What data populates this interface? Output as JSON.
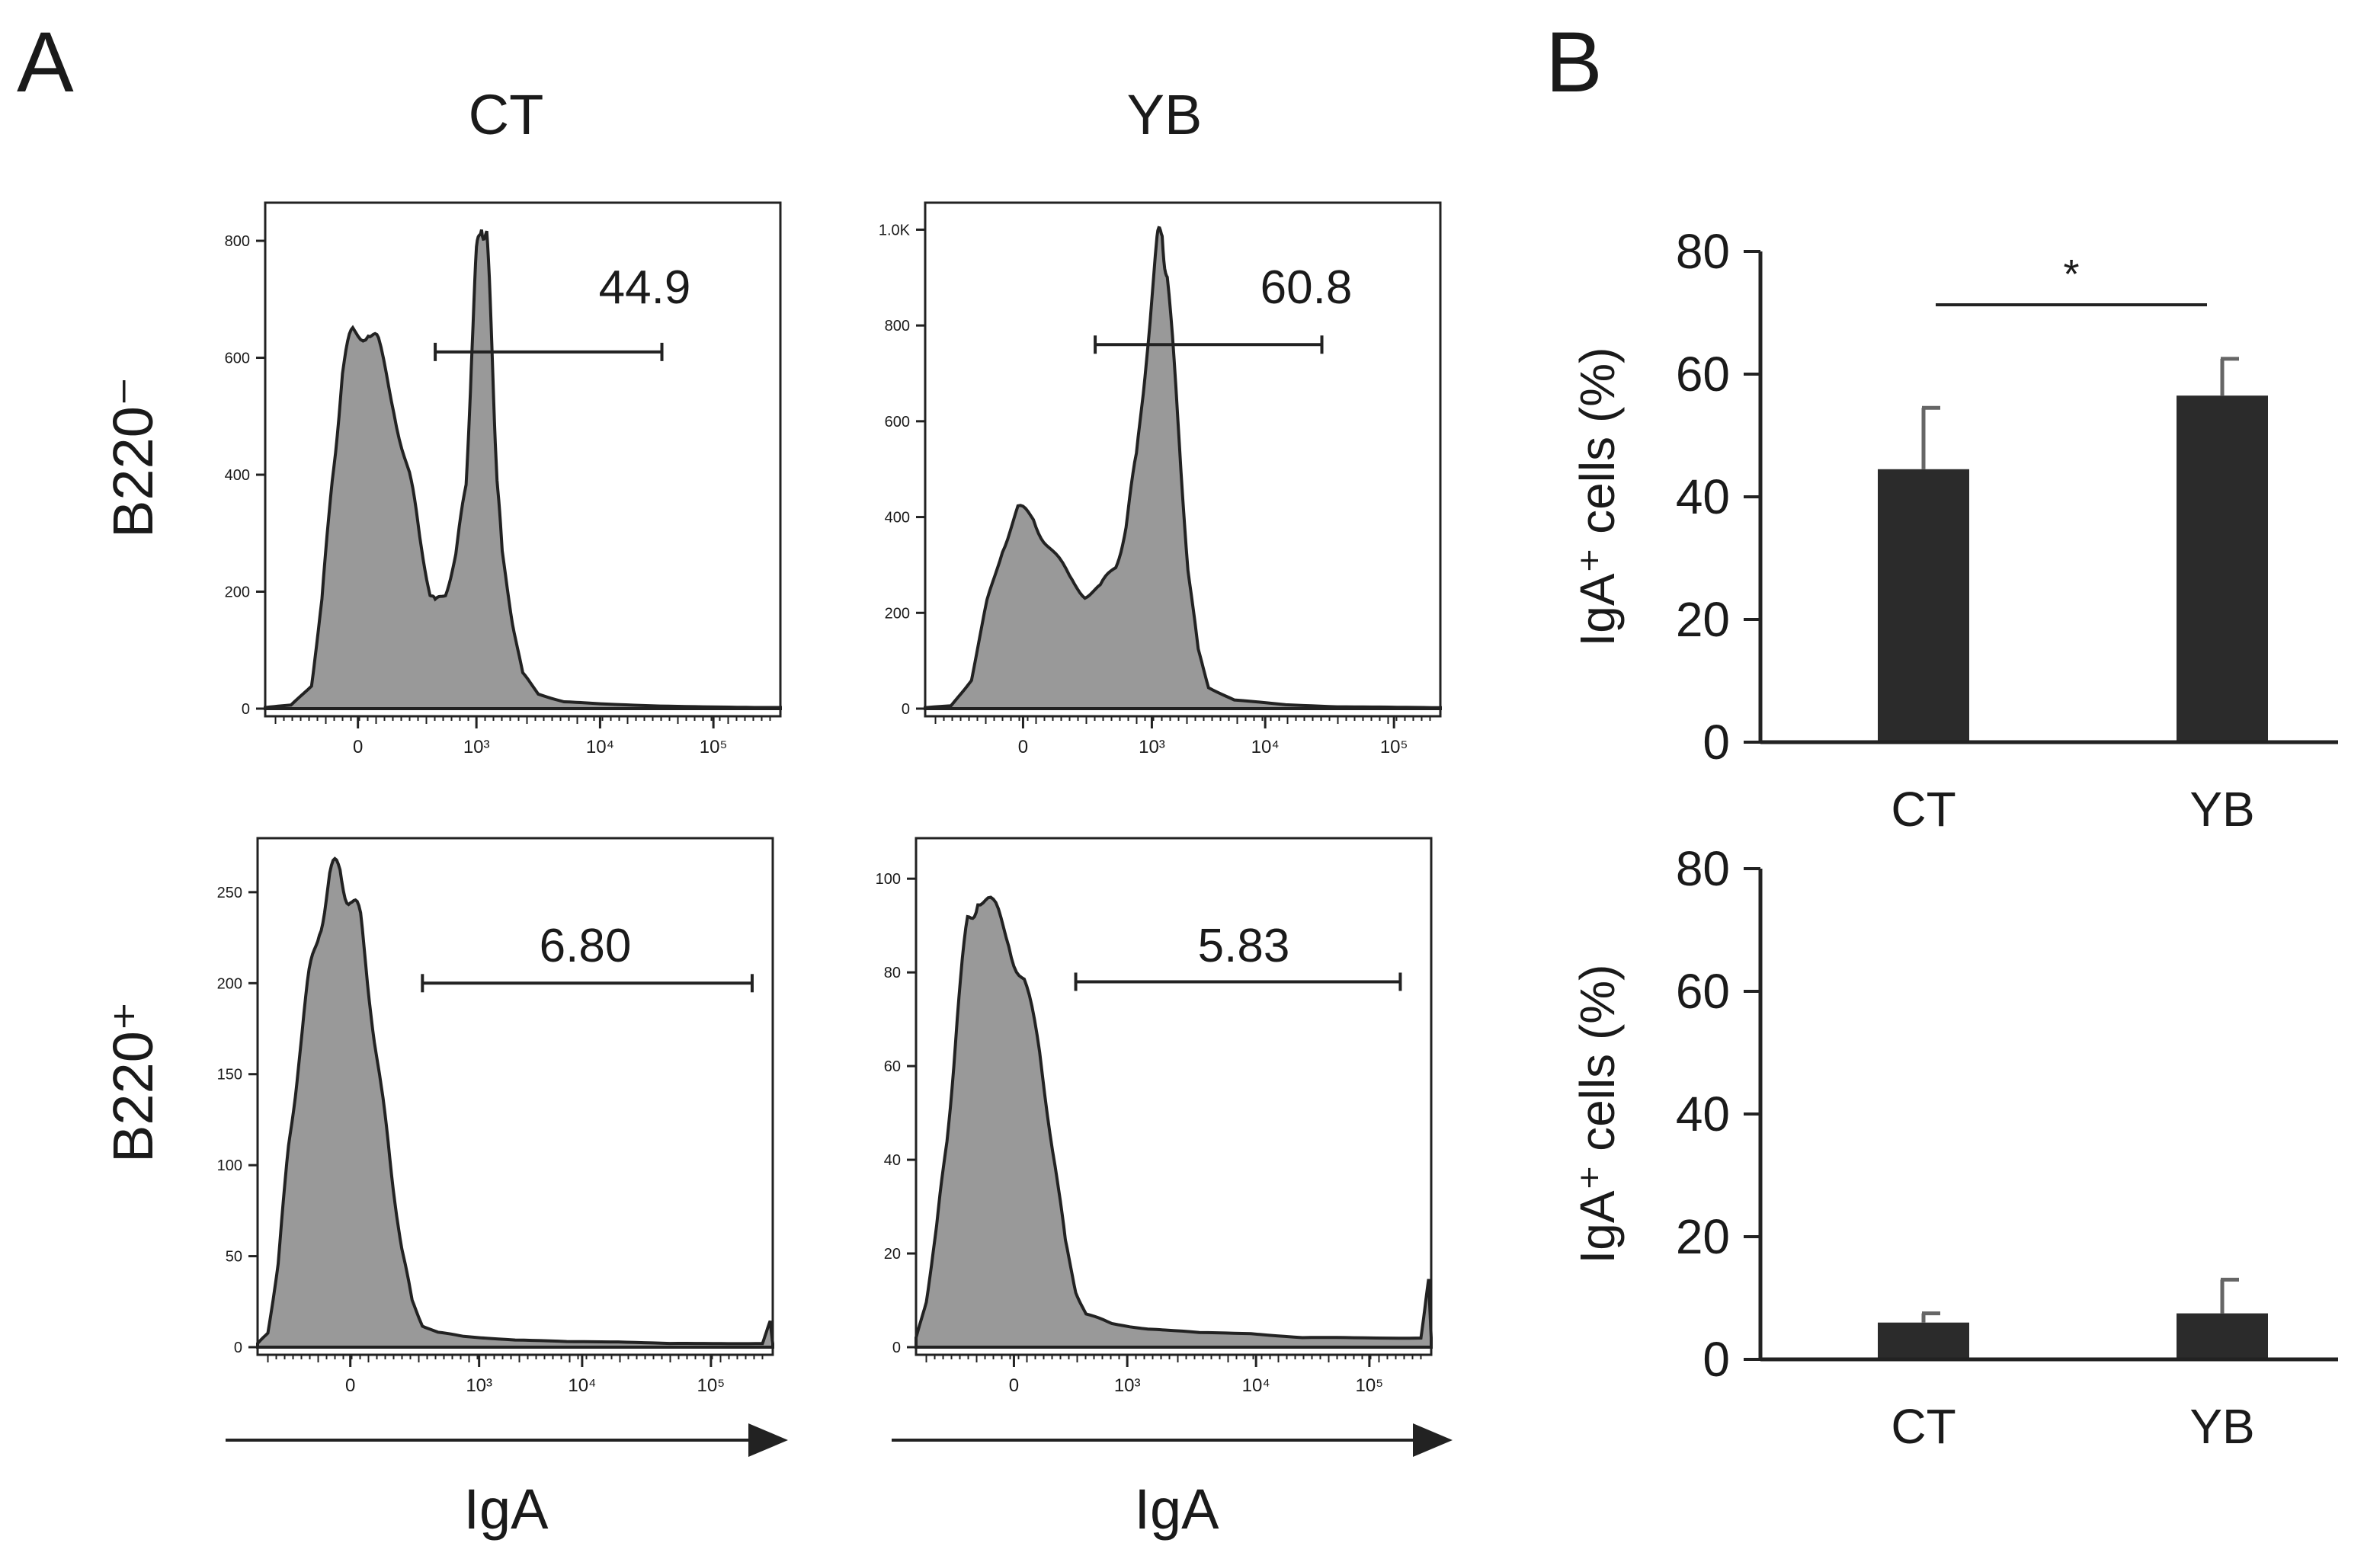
{
  "panels": {
    "a": "A",
    "b": "B"
  },
  "colors": {
    "fill": "#999999",
    "line": "#222222",
    "bar": "#2b2b2b",
    "axis": "#222222"
  },
  "chart_data": [
    {
      "type": "histogram",
      "name": "B220- CT",
      "row_label": "B220⁻",
      "column_label": "CT",
      "gate_value": "44.9",
      "xlabel": "",
      "y_ticks": [
        "0",
        "200",
        "400",
        "600",
        "800"
      ],
      "ylim": [
        0,
        860
      ],
      "x_tick_labels": [
        "0",
        "10³",
        "10⁴",
        "10⁵"
      ],
      "x_tick_positions": [
        0.18,
        0.41,
        0.65,
        0.87
      ],
      "gate": {
        "start": 0.33,
        "end": 0.77,
        "level": 610
      },
      "profile": [
        [
          0.0,
          2
        ],
        [
          0.05,
          6
        ],
        [
          0.09,
          40
        ],
        [
          0.11,
          180
        ],
        [
          0.13,
          400
        ],
        [
          0.15,
          570
        ],
        [
          0.17,
          640
        ],
        [
          0.2,
          660
        ],
        [
          0.22,
          610
        ],
        [
          0.25,
          520
        ],
        [
          0.28,
          400
        ],
        [
          0.3,
          290
        ],
        [
          0.32,
          200
        ],
        [
          0.33,
          180
        ],
        [
          0.35,
          200
        ],
        [
          0.37,
          260
        ],
        [
          0.39,
          380
        ],
        [
          0.4,
          600
        ],
        [
          0.41,
          760
        ],
        [
          0.42,
          850
        ],
        [
          0.43,
          800
        ],
        [
          0.44,
          620
        ],
        [
          0.45,
          400
        ],
        [
          0.46,
          260
        ],
        [
          0.48,
          150
        ],
        [
          0.5,
          60
        ],
        [
          0.53,
          25
        ],
        [
          0.58,
          12
        ],
        [
          0.65,
          8
        ],
        [
          0.75,
          5
        ],
        [
          0.85,
          3
        ],
        [
          0.95,
          2
        ],
        [
          1.0,
          2
        ]
      ]
    },
    {
      "type": "histogram",
      "name": "B220- YB",
      "column_label": "YB",
      "gate_value": "60.8",
      "xlabel": "",
      "y_ticks": [
        "0",
        "200",
        "400",
        "600",
        "800",
        "1.0K"
      ],
      "ylim": [
        0,
        1050
      ],
      "x_tick_labels": [
        "0",
        "10³",
        "10⁴",
        "10⁵"
      ],
      "x_tick_positions": [
        0.19,
        0.44,
        0.66,
        0.91
      ],
      "gate": {
        "start": 0.33,
        "end": 0.77,
        "level": 760
      },
      "profile": [
        [
          0.0,
          2
        ],
        [
          0.05,
          6
        ],
        [
          0.09,
          60
        ],
        [
          0.12,
          220
        ],
        [
          0.15,
          340
        ],
        [
          0.18,
          410
        ],
        [
          0.21,
          400
        ],
        [
          0.24,
          340
        ],
        [
          0.28,
          270
        ],
        [
          0.31,
          240
        ],
        [
          0.34,
          250
        ],
        [
          0.37,
          300
        ],
        [
          0.39,
          380
        ],
        [
          0.41,
          520
        ],
        [
          0.43,
          760
        ],
        [
          0.45,
          950
        ],
        [
          0.46,
          1010
        ],
        [
          0.47,
          900
        ],
        [
          0.49,
          600
        ],
        [
          0.51,
          300
        ],
        [
          0.53,
          120
        ],
        [
          0.55,
          45
        ],
        [
          0.6,
          18
        ],
        [
          0.7,
          8
        ],
        [
          0.8,
          4
        ],
        [
          0.9,
          3
        ],
        [
          1.0,
          2
        ]
      ]
    },
    {
      "type": "histogram",
      "name": "B220+ CT",
      "row_label": "B220⁺",
      "gate_value": "6.80",
      "xlabel": "IgA",
      "y_ticks": [
        "0",
        "50",
        "100",
        "150",
        "200",
        "250"
      ],
      "ylim": [
        0,
        278
      ],
      "x_tick_labels": [
        "0",
        "10³",
        "10⁴",
        "10⁵"
      ],
      "x_tick_positions": [
        0.18,
        0.43,
        0.63,
        0.88
      ],
      "gate": {
        "start": 0.32,
        "end": 0.96,
        "level": 200
      },
      "profile": [
        [
          0.0,
          2
        ],
        [
          0.02,
          8
        ],
        [
          0.04,
          45
        ],
        [
          0.06,
          110
        ],
        [
          0.08,
          160
        ],
        [
          0.1,
          200
        ],
        [
          0.12,
          235
        ],
        [
          0.14,
          255
        ],
        [
          0.16,
          262
        ],
        [
          0.18,
          250
        ],
        [
          0.2,
          230
        ],
        [
          0.22,
          190
        ],
        [
          0.24,
          140
        ],
        [
          0.26,
          95
        ],
        [
          0.28,
          55
        ],
        [
          0.3,
          25
        ],
        [
          0.32,
          12
        ],
        [
          0.35,
          8
        ],
        [
          0.4,
          6
        ],
        [
          0.5,
          4
        ],
        [
          0.6,
          3
        ],
        [
          0.7,
          3
        ],
        [
          0.8,
          2
        ],
        [
          0.9,
          2
        ],
        [
          0.98,
          2
        ],
        [
          0.995,
          14
        ],
        [
          1.0,
          2
        ]
      ]
    },
    {
      "type": "histogram",
      "name": "B220+ YB",
      "gate_value": "5.83",
      "xlabel": "IgA",
      "y_ticks": [
        "0",
        "20",
        "40",
        "60",
        "80",
        "100"
      ],
      "ylim": [
        0,
        108
      ],
      "x_tick_labels": [
        "0",
        "10³",
        "10⁴",
        "10⁵"
      ],
      "x_tick_positions": [
        0.19,
        0.41,
        0.66,
        0.88
      ],
      "gate": {
        "start": 0.31,
        "end": 0.94,
        "level": 78
      },
      "profile": [
        [
          0.0,
          2
        ],
        [
          0.02,
          10
        ],
        [
          0.04,
          25
        ],
        [
          0.06,
          45
        ],
        [
          0.08,
          70
        ],
        [
          0.1,
          90
        ],
        [
          0.12,
          98
        ],
        [
          0.15,
          92
        ],
        [
          0.18,
          88
        ],
        [
          0.21,
          78
        ],
        [
          0.24,
          62
        ],
        [
          0.27,
          40
        ],
        [
          0.29,
          22
        ],
        [
          0.31,
          12
        ],
        [
          0.33,
          7
        ],
        [
          0.38,
          5
        ],
        [
          0.45,
          4
        ],
        [
          0.55,
          3
        ],
        [
          0.65,
          3
        ],
        [
          0.75,
          2
        ],
        [
          0.85,
          2
        ],
        [
          0.98,
          2
        ],
        [
          0.995,
          14
        ],
        [
          1.0,
          2
        ]
      ]
    },
    {
      "type": "bar",
      "name": "IgA+ B220-",
      "categories": [
        "CT",
        "YB"
      ],
      "values": [
        44.5,
        56.5
      ],
      "error": [
        10,
        6
      ],
      "ylabel": "IgA⁺ cells (%)",
      "y_ticks": [
        "0",
        "20",
        "40",
        "60",
        "80"
      ],
      "ylim": [
        0,
        80
      ],
      "significance": "*"
    },
    {
      "type": "bar",
      "name": "IgA+ B220+",
      "categories": [
        "CT",
        "YB"
      ],
      "values": [
        6,
        7.5
      ],
      "error": [
        1.5,
        5.5
      ],
      "ylabel": "IgA⁺ cells (%)",
      "y_ticks": [
        "0",
        "20",
        "40",
        "60",
        "80"
      ],
      "ylim": [
        0,
        80
      ]
    }
  ]
}
